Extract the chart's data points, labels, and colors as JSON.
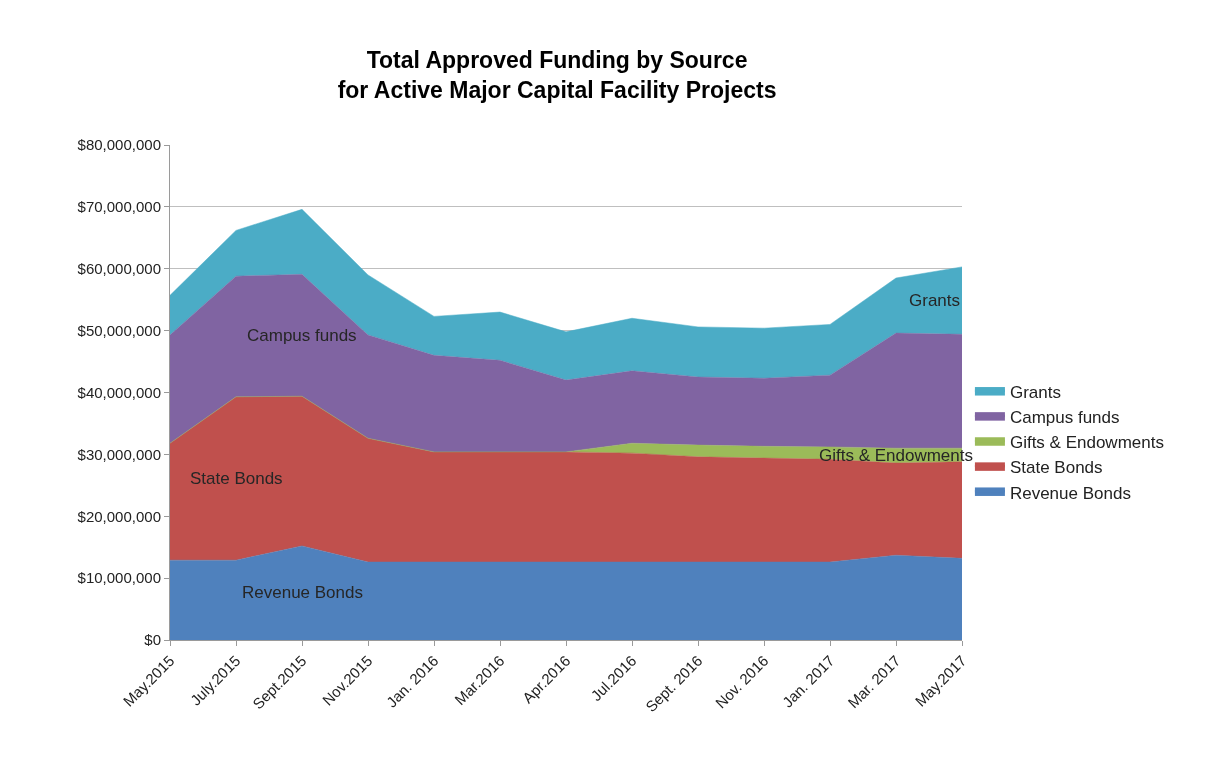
{
  "chart_data": {
    "type": "area",
    "stacked": true,
    "title": "Total Approved Funding by Source\nfor Active Major Capital Facility Projects",
    "categories": [
      "May.2015",
      "July.2015",
      "Sept.2015",
      "Nov.2015",
      "Jan. 2016",
      "Mar.2016",
      "Apr.2016",
      "Jul.2016",
      "Sept. 2016",
      "Nov. 2016",
      "Jan. 2017",
      "Mar. 2017",
      "May.2017"
    ],
    "series": [
      {
        "name": "Revenue Bonds",
        "color": "#4f81bd",
        "values": [
          12900000,
          12900000,
          15200000,
          12600000,
          12600000,
          12600000,
          12600000,
          12600000,
          12600000,
          12600000,
          12600000,
          13700000,
          13200000
        ]
      },
      {
        "name": "State Bonds",
        "color": "#c0504d",
        "values": [
          18900000,
          26400000,
          24200000,
          20000000,
          17800000,
          17800000,
          17800000,
          17600000,
          17000000,
          16800000,
          16600000,
          14900000,
          15600000
        ]
      },
      {
        "name": "Gifts & Endowments",
        "color": "#9bbb59",
        "values": [
          0,
          0,
          0,
          0,
          0,
          0,
          0,
          1600000,
          1900000,
          1900000,
          2000000,
          2400000,
          2200000
        ]
      },
      {
        "name": "Campus funds",
        "color": "#8064a2",
        "values": [
          17500000,
          19500000,
          19700000,
          16700000,
          15600000,
          14800000,
          11600000,
          11700000,
          11000000,
          11000000,
          11600000,
          18600000,
          18400000
        ]
      },
      {
        "name": "Grants",
        "color": "#4bacc6",
        "values": [
          6400000,
          7400000,
          10500000,
          9700000,
          6300000,
          7800000,
          7800000,
          8500000,
          8100000,
          8100000,
          8200000,
          8900000,
          10900000
        ]
      }
    ],
    "ylim": [
      0,
      80000000
    ],
    "yticks": [
      {
        "value": 0,
        "label": "$0"
      },
      {
        "value": 10000000,
        "label": "$10,000,000"
      },
      {
        "value": 20000000,
        "label": "$20,000,000"
      },
      {
        "value": 30000000,
        "label": "$30,000,000"
      },
      {
        "value": 40000000,
        "label": "$40,000,000"
      },
      {
        "value": 50000000,
        "label": "$50,000,000"
      },
      {
        "value": 60000000,
        "label": "$60,000,000"
      },
      {
        "value": 70000000,
        "label": "$70,000,000"
      },
      {
        "value": 80000000,
        "label": "$80,000,000"
      }
    ],
    "grid": "y",
    "legend": "right"
  }
}
